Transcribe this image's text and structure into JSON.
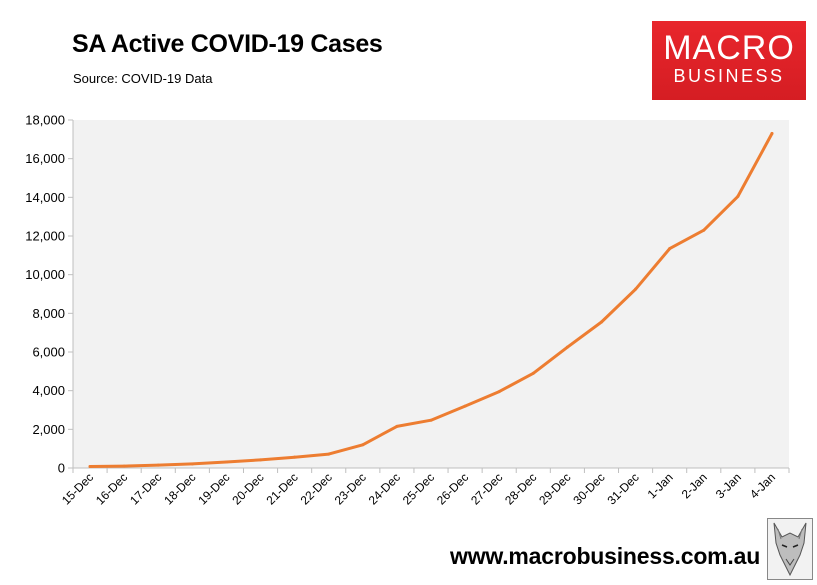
{
  "header": {
    "title": "SA Active COVID-19 Cases",
    "source": "Source: COVID-19 Data"
  },
  "logo": {
    "line1": "MACRO",
    "line2": "BUSINESS"
  },
  "footer": {
    "url": "www.macrobusiness.com.au",
    "mascot_icon": "wolf-icon"
  },
  "colors": {
    "line": "#ED7D31",
    "plot_bg": "#F2F2F2",
    "logo_red": "#E3242B"
  },
  "chart_data": {
    "type": "line",
    "title": "SA Active COVID-19 Cases",
    "xlabel": "",
    "ylabel": "",
    "ylim": [
      0,
      18000
    ],
    "yticks": [
      0,
      2000,
      4000,
      6000,
      8000,
      10000,
      12000,
      14000,
      16000,
      18000
    ],
    "ytick_labels": [
      "0",
      "2,000",
      "4,000",
      "6,000",
      "8,000",
      "10,000",
      "12,000",
      "14,000",
      "16,000",
      "18,000"
    ],
    "categories": [
      "15-Dec",
      "16-Dec",
      "17-Dec",
      "18-Dec",
      "19-Dec",
      "20-Dec",
      "21-Dec",
      "22-Dec",
      "23-Dec",
      "24-Dec",
      "25-Dec",
      "26-Dec",
      "27-Dec",
      "28-Dec",
      "29-Dec",
      "30-Dec",
      "31-Dec",
      "1-Jan",
      "2-Jan",
      "3-Jan",
      "4-Jan"
    ],
    "series": [
      {
        "name": "SA Active COVID-19 Cases",
        "values": [
          80,
          100,
          150,
          210,
          310,
          420,
          560,
          720,
          1200,
          2150,
          2470,
          3200,
          3950,
          4900,
          6250,
          7550,
          9250,
          11350,
          12300,
          14050,
          17300
        ]
      }
    ],
    "grid": false,
    "legend": "none"
  }
}
